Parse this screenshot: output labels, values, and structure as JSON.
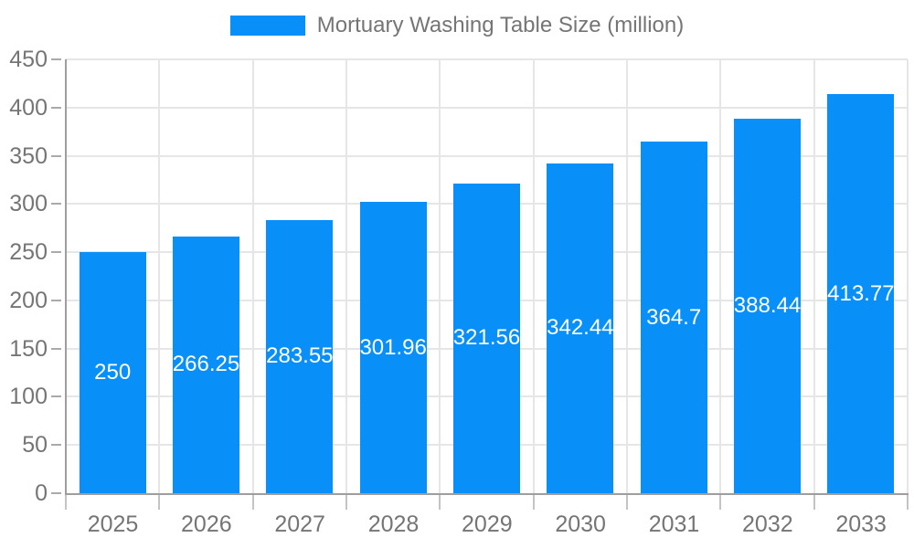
{
  "chart_data": {
    "type": "bar",
    "title": "",
    "legend_label": "Mortuary Washing Table Size (million)",
    "legend_position": "top-center",
    "categories": [
      "2025",
      "2026",
      "2027",
      "2028",
      "2029",
      "2030",
      "2031",
      "2032",
      "2033"
    ],
    "series": [
      {
        "name": "Mortuary Washing Table Size (million)",
        "values": [
          250,
          266.25,
          283.55,
          301.96,
          321.56,
          342.44,
          364.7,
          388.44,
          413.77
        ]
      }
    ],
    "value_labels": [
      "250",
      "266.25",
      "283.55",
      "301.96",
      "321.56",
      "342.44",
      "364.7",
      "388.44",
      "413.77"
    ],
    "xlabel": "",
    "ylabel": "",
    "ylim": [
      0,
      450
    ],
    "y_ticks": [
      0,
      50,
      100,
      150,
      200,
      250,
      300,
      350,
      400,
      450
    ],
    "grid": true,
    "colors": {
      "bar": "#0990F8",
      "value_label": "#ffffff",
      "tick_label": "#757575",
      "legend_label": "#757575",
      "grid_line": "#e6e6e6",
      "axis_line": "#9e9e9e",
      "tick_mark_y": "#aaaaaa",
      "tick_mark_x": "#c4c4c4",
      "background": "#ffffff"
    }
  }
}
